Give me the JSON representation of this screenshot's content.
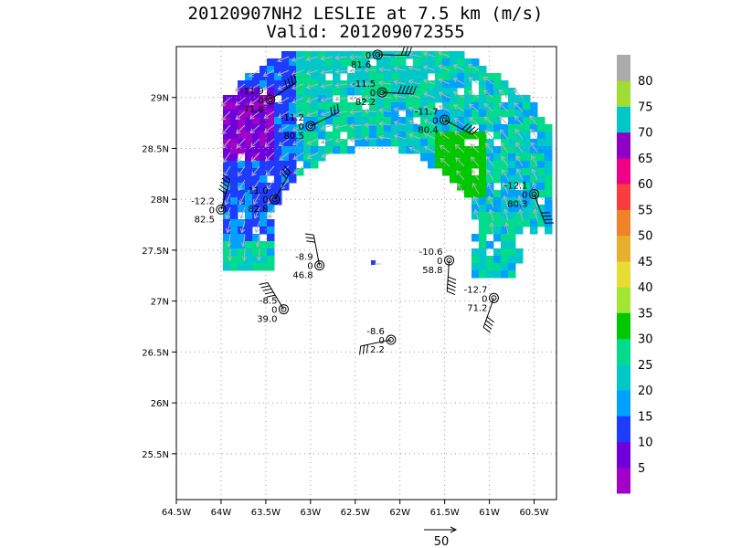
{
  "chart_data": {
    "type": "heatmap",
    "title": "20120907NH2 LESLIE at 7.5 km (m/s)",
    "subtitle": "Valid: 201209072355",
    "x_ticks": [
      "64.5W",
      "64W",
      "63.5W",
      "63W",
      "62.5W",
      "62W",
      "61.5W",
      "61W",
      "60.5W"
    ],
    "y_ticks": [
      "25.5N",
      "26N",
      "26.5N",
      "27N",
      "27.5N",
      "28N",
      "28.5N",
      "29N"
    ],
    "xlim": [
      -64.5,
      -60.25
    ],
    "ylim": [
      25.05,
      29.5
    ],
    "grid": true,
    "colorbar": {
      "labels": [
        "5",
        "10",
        "15",
        "20",
        "25",
        "30",
        "35",
        "40",
        "45",
        "50",
        "55",
        "60",
        "65",
        "70",
        "75",
        "80"
      ],
      "colors": [
        "#a000c8",
        "#6e00dc",
        "#1e3cff",
        "#00a0ff",
        "#00c8c8",
        "#00dc8c",
        "#00c800",
        "#a0e632",
        "#e6dc32",
        "#e6af2d",
        "#f08228",
        "#fa3c3c",
        "#f00082",
        "#8c00c8",
        "#00c8c8",
        "#a0dc32",
        "#aaaaaa"
      ]
    },
    "vector_scale_label": "50",
    "stations": [
      {
        "lon": -62.25,
        "lat": 29.42,
        "top": "",
        "mid": "0",
        "bot": "81.6"
      },
      {
        "lon": -63.45,
        "lat": 28.98,
        "top": "-11.9",
        "mid": "0",
        "bot": "71.8"
      },
      {
        "lon": -62.2,
        "lat": 29.05,
        "top": "-11.5",
        "mid": "0",
        "bot": "82.2"
      },
      {
        "lon": -63.0,
        "lat": 28.72,
        "top": "-11.2",
        "mid": "0",
        "bot": "80.5"
      },
      {
        "lon": -61.5,
        "lat": 28.78,
        "top": "-11.7",
        "mid": "0",
        "bot": "80.4"
      },
      {
        "lon": -64.0,
        "lat": 27.9,
        "top": "-12.2",
        "mid": "0",
        "bot": "82.5"
      },
      {
        "lon": -63.4,
        "lat": 28.0,
        "top": "-11.0",
        "mid": "0",
        "bot": "82.8"
      },
      {
        "lon": -60.5,
        "lat": 28.05,
        "top": "-12.1",
        "mid": "0",
        "bot": "80.3"
      },
      {
        "lon": -61.45,
        "lat": 27.4,
        "top": "-10.6",
        "mid": "0",
        "bot": "58.8"
      },
      {
        "lon": -62.9,
        "lat": 27.35,
        "top": "-8.9",
        "mid": "0",
        "bot": "46.8"
      },
      {
        "lon": -60.95,
        "lat": 27.03,
        "top": "-12.7",
        "mid": "0",
        "bot": "71.2"
      },
      {
        "lon": -63.3,
        "lat": 26.92,
        "top": "-8.5",
        "mid": "0",
        "bot": "39.0"
      },
      {
        "lon": -62.1,
        "lat": 26.62,
        "top": "-8.6",
        "mid": "0",
        "bot": "2.2"
      }
    ]
  }
}
